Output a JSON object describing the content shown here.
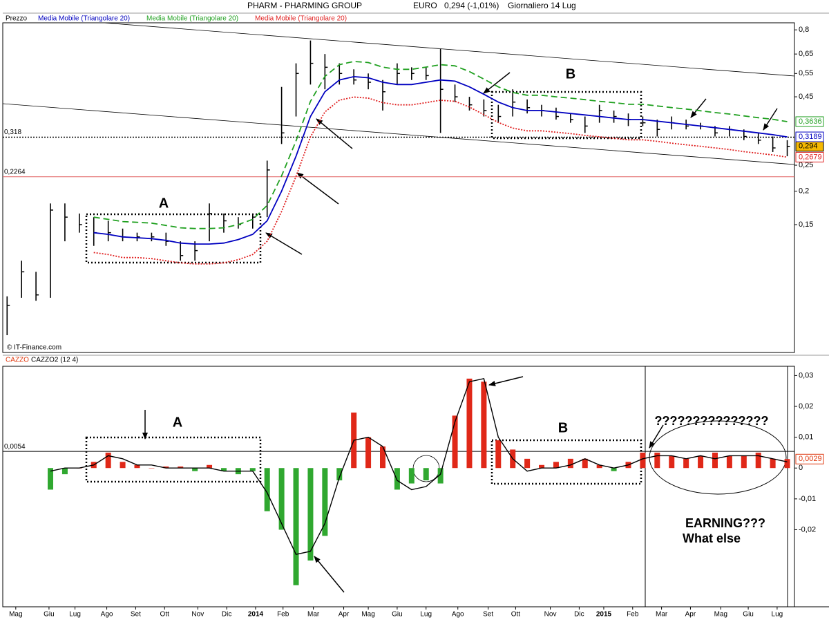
{
  "chart_data": [
    {
      "type": "ohlc",
      "title": "PHARM - PHARMING GROUP",
      "currency": "EURO",
      "quote": "0,294 (-1,01%)",
      "period": "Giornaliero  14 Lug",
      "source": "© IT-Finance.com",
      "log_scale": true,
      "ylim": [
        0.05,
        0.85
      ],
      "yticks": [
        {
          "value": 0.15,
          "label": "0,15"
        },
        {
          "value": 0.2,
          "label": "0,2"
        },
        {
          "value": 0.25,
          "label": "0,25"
        },
        {
          "value": 0.45,
          "label": "0,45"
        },
        {
          "value": 0.55,
          "label": "0,55"
        },
        {
          "value": 0.65,
          "label": "0,65"
        },
        {
          "value": 0.8,
          "label": "0,8"
        }
      ],
      "reference_lines": [
        {
          "value": 0.318,
          "label": "0,318",
          "color": "#000000",
          "style": "dotted"
        },
        {
          "value": 0.2264,
          "label": "0,2264",
          "color": "#e06060",
          "style": "solid"
        }
      ],
      "series": [
        {
          "name": "Prezzo",
          "color": "#000000",
          "last_label": "0,294",
          "label_fill": "#f5b800",
          "high": [
            0.081,
            0.11,
            0.1,
            0.18,
            0.18,
            0.165,
            0.16,
            0.155,
            0.145,
            0.14,
            0.14,
            0.14,
            0.13,
            0.13,
            0.18,
            0.165,
            0.16,
            0.165,
            0.26,
            0.49,
            0.6,
            0.73,
            0.65,
            0.6,
            0.57,
            0.55,
            0.52,
            0.6,
            0.58,
            0.58,
            0.68,
            0.5,
            0.45,
            0.44,
            0.42,
            0.48,
            0.44,
            0.42,
            0.41,
            0.39,
            0.38,
            0.42,
            0.4,
            0.39,
            0.38,
            0.37,
            0.38,
            0.37,
            0.36,
            0.35,
            0.35,
            0.34,
            0.33,
            0.32,
            0.31
          ],
          "low": [
            0.058,
            0.08,
            0.078,
            0.08,
            0.13,
            0.14,
            0.125,
            0.13,
            0.13,
            0.13,
            0.13,
            0.125,
            0.11,
            0.11,
            0.13,
            0.14,
            0.145,
            0.145,
            0.16,
            0.3,
            0.38,
            0.5,
            0.48,
            0.5,
            0.5,
            0.48,
            0.4,
            0.5,
            0.52,
            0.52,
            0.33,
            0.43,
            0.4,
            0.38,
            0.36,
            0.38,
            0.39,
            0.38,
            0.37,
            0.36,
            0.33,
            0.36,
            0.36,
            0.35,
            0.35,
            0.32,
            0.34,
            0.34,
            0.34,
            0.32,
            0.32,
            0.31,
            0.3,
            0.28,
            0.27
          ],
          "close": [
            0.075,
            0.1,
            0.082,
            0.17,
            0.16,
            0.15,
            0.14,
            0.14,
            0.135,
            0.135,
            0.135,
            0.13,
            0.115,
            0.12,
            0.165,
            0.155,
            0.15,
            0.16,
            0.24,
            0.33,
            0.55,
            0.6,
            0.58,
            0.55,
            0.52,
            0.51,
            0.47,
            0.55,
            0.55,
            0.54,
            0.48,
            0.45,
            0.42,
            0.4,
            0.38,
            0.43,
            0.41,
            0.4,
            0.38,
            0.37,
            0.35,
            0.4,
            0.38,
            0.37,
            0.36,
            0.34,
            0.36,
            0.35,
            0.35,
            0.33,
            0.34,
            0.32,
            0.31,
            0.29,
            0.294
          ]
        },
        {
          "name": "Media Mobile (Triangolare 20)",
          "color": "#0000c0",
          "style": "solid",
          "last_label": "0,3189",
          "values": [
            null,
            null,
            null,
            null,
            null,
            null,
            0.14,
            0.138,
            0.135,
            0.134,
            0.133,
            0.131,
            0.128,
            0.127,
            0.127,
            0.128,
            0.132,
            0.138,
            0.155,
            0.2,
            0.27,
            0.38,
            0.47,
            0.52,
            0.535,
            0.53,
            0.51,
            0.5,
            0.5,
            0.51,
            0.52,
            0.515,
            0.49,
            0.46,
            0.43,
            0.41,
            0.4,
            0.4,
            0.395,
            0.39,
            0.385,
            0.38,
            0.375,
            0.37,
            0.37,
            0.365,
            0.36,
            0.355,
            0.35,
            0.345,
            0.34,
            0.335,
            0.33,
            0.325,
            0.3189
          ]
        },
        {
          "name": "Media Mobile (Triangolare 20)",
          "color": "#20a020",
          "style": "dashed",
          "last_label": "0,3636",
          "values": [
            null,
            null,
            null,
            null,
            null,
            null,
            0.16,
            0.157,
            0.154,
            0.153,
            0.152,
            0.149,
            0.146,
            0.145,
            0.145,
            0.146,
            0.15,
            0.157,
            0.177,
            0.228,
            0.308,
            0.433,
            0.536,
            0.593,
            0.61,
            0.604,
            0.581,
            0.57,
            0.57,
            0.581,
            0.593,
            0.587,
            0.559,
            0.524,
            0.49,
            0.467,
            0.456,
            0.456,
            0.45,
            0.445,
            0.439,
            0.433,
            0.428,
            0.422,
            0.422,
            0.416,
            0.41,
            0.405,
            0.399,
            0.393,
            0.388,
            0.382,
            0.376,
            0.371,
            0.3636
          ]
        },
        {
          "name": "Media Mobile (Triangolare 20)",
          "color": "#e02020",
          "style": "dotted",
          "last_label": "0,2679",
          "values": [
            null,
            null,
            null,
            null,
            null,
            null,
            0.118,
            0.116,
            0.113,
            0.113,
            0.112,
            0.11,
            0.108,
            0.107,
            0.107,
            0.108,
            0.111,
            0.116,
            0.13,
            0.168,
            0.227,
            0.319,
            0.395,
            0.437,
            0.449,
            0.445,
            0.428,
            0.42,
            0.42,
            0.428,
            0.437,
            0.433,
            0.412,
            0.386,
            0.361,
            0.344,
            0.336,
            0.336,
            0.332,
            0.328,
            0.323,
            0.319,
            0.315,
            0.311,
            0.311,
            0.307,
            0.302,
            0.298,
            0.294,
            0.29,
            0.286,
            0.281,
            0.277,
            0.273,
            0.2679
          ]
        }
      ],
      "annotations": [
        "A",
        "B"
      ]
    },
    {
      "type": "bar",
      "ylim": [
        -0.045,
        0.033
      ],
      "yticks": [
        {
          "value": -0.02,
          "label": "-0,02"
        },
        {
          "value": -0.01,
          "label": "-0,01"
        },
        0,
        {
          "value": 0.01,
          "label": "0,01"
        },
        {
          "value": 0.02,
          "label": "0,02"
        },
        {
          "value": 0.03,
          "label": "0,03"
        }
      ],
      "xlim": [
        -0.3,
        54.5
      ],
      "xticks": [
        {
          "value": 0.6,
          "label": "Mag"
        },
        {
          "value": 2.9,
          "label": "Giu"
        },
        {
          "value": 4.7,
          "label": "Lug"
        },
        {
          "value": 6.9,
          "label": "Ago"
        },
        {
          "value": 8.9,
          "label": "Set"
        },
        {
          "value": 10.9,
          "label": "Ott"
        },
        {
          "value": 13.2,
          "label": "Nov"
        },
        {
          "value": 15.2,
          "label": "Dic"
        },
        {
          "value": 17.2,
          "label": "2014"
        },
        {
          "value": 19.1,
          "label": "Feb"
        },
        {
          "value": 21.2,
          "label": "Mar"
        },
        {
          "value": 23.3,
          "label": "Apr"
        },
        {
          "value": 25,
          "label": "Mag"
        },
        {
          "value": 27,
          "label": "Giu"
        },
        {
          "value": 29,
          "label": "Lug"
        },
        {
          "value": 31.2,
          "label": "Ago"
        },
        {
          "value": 33.3,
          "label": "Set"
        },
        {
          "value": 35.2,
          "label": "Ott"
        },
        {
          "value": 37.6,
          "label": "Nov"
        },
        {
          "value": 39.6,
          "label": "Dic"
        },
        {
          "value": 41.3,
          "label": "2015"
        },
        {
          "value": 43.3,
          "label": "Feb"
        },
        {
          "value": 45.3,
          "label": "Mar"
        },
        {
          "value": 47.3,
          "label": "Apr"
        },
        {
          "value": 49.4,
          "label": "Mag"
        },
        {
          "value": 51.3,
          "label": "Giu"
        },
        {
          "value": 53.3,
          "label": "Lug"
        }
      ],
      "reference_lines": [
        {
          "value": 0.0054,
          "label": "0,0054",
          "color": "#000000",
          "style": "solid"
        }
      ],
      "series": [
        {
          "name": "CAZZO",
          "color": "#e03a10",
          "positive_color": "#e02818",
          "negative_color": "#30a830",
          "last_label": "0,0029",
          "values": [
            null,
            null,
            null,
            -0.007,
            -0.002,
            0,
            0.002,
            0.005,
            0.002,
            0.001,
            0,
            0.0005,
            0.0005,
            -0.001,
            0.001,
            -0.001,
            -0.002,
            -0.001,
            -0.014,
            -0.02,
            -0.038,
            -0.03,
            -0.022,
            -0.004,
            0.018,
            0.01,
            0.007,
            -0.007,
            -0.005,
            -0.004,
            -0.005,
            0.017,
            0.029,
            0.028,
            0.009,
            0.006,
            0.003,
            0.001,
            0.002,
            0.003,
            0.003,
            0.001,
            -0.001,
            0.002,
            0.005,
            0.005,
            0.004,
            0.003,
            0.004,
            0.005,
            0.004,
            0.004,
            0.005,
            0.003,
            0.0029
          ]
        },
        {
          "name": "CAZZO2 (12 4)",
          "color": "#000000",
          "values": [
            null,
            null,
            null,
            -0.001,
            0,
            0,
            0.001,
            0.004,
            0.003,
            0.001,
            0.001,
            0,
            0,
            0,
            0,
            -0.001,
            -0.001,
            -0.001,
            -0.008,
            -0.018,
            -0.028,
            -0.027,
            -0.018,
            -0.003,
            0.009,
            0.01,
            0.007,
            -0.004,
            -0.007,
            -0.006,
            -0.002,
            0.015,
            0.028,
            0.029,
            0.01,
            0.003,
            -0.001,
            0,
            0,
            0.001,
            0.003,
            0.001,
            0,
            0.001,
            0.003,
            0.004,
            0.004,
            0.003,
            0.004,
            0.003,
            0.004,
            0.004,
            0.004,
            0.003,
            0.002
          ]
        }
      ],
      "annotations": [
        "A",
        "B",
        "???????????????",
        "EARNING???",
        "What else"
      ]
    }
  ]
}
